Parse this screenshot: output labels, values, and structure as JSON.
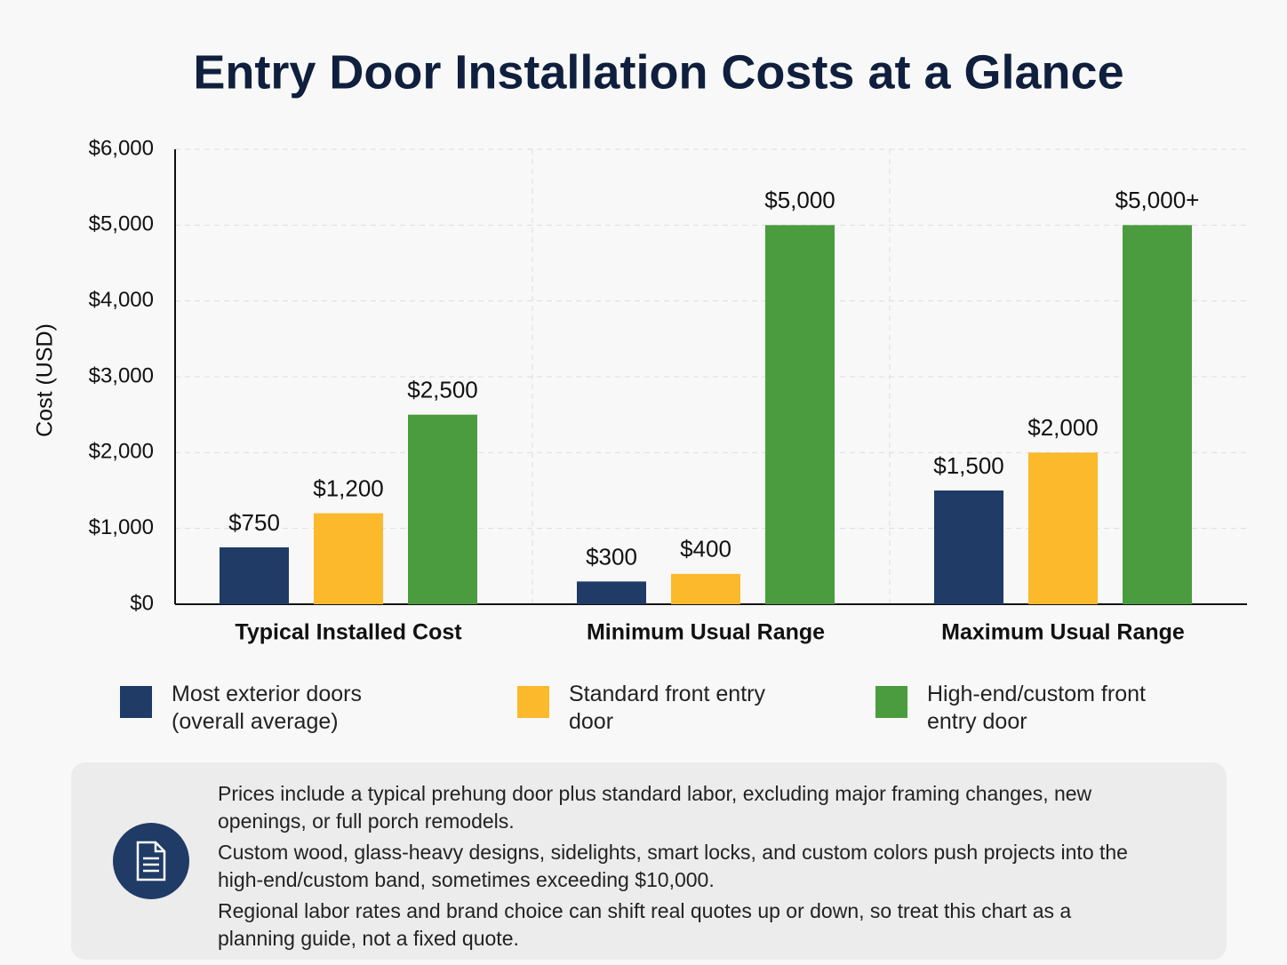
{
  "chart_data": {
    "type": "bar",
    "title": "Entry Door Installation Costs at a Glance",
    "y_label": "Cost (USD)",
    "categories": [
      "Typical Installed Cost",
      "Minimum Usual Range",
      "Maximum Usual Range"
    ],
    "series": [
      {
        "name": "Most exterior doors (overall average)",
        "color": "#1f3b66",
        "values": [
          750,
          300,
          1500
        ],
        "value_labels": [
          "$750",
          "$300",
          "$1,500"
        ]
      },
      {
        "name": "Standard front entry door",
        "color": "#fbb92b",
        "values": [
          1200,
          400,
          2000
        ],
        "value_labels": [
          "$1,200",
          "$400",
          "$2,000"
        ]
      },
      {
        "name": "High-end/custom front entry door",
        "color": "#4b9b3f",
        "values": [
          2500,
          5000,
          5000
        ],
        "value_labels": [
          "$2,500",
          "$5,000",
          "$5,000+"
        ]
      }
    ],
    "ylim": [
      0,
      6000
    ],
    "yticks": [
      {
        "value": 0,
        "label": "$0"
      },
      {
        "value": 1000,
        "label": "$1,000"
      },
      {
        "value": 2000,
        "label": "$2,000"
      },
      {
        "value": 3000,
        "label": "$3,000"
      },
      {
        "value": 4000,
        "label": "$4,000"
      },
      {
        "value": 5000,
        "label": "$5,000"
      },
      {
        "value": 6000,
        "label": "$6,000"
      }
    ],
    "grid": true,
    "notes": [
      "Prices include a typical prehung door plus standard labor, excluding major framing changes, new openings, or full porch remodels.",
      "Custom wood, glass-heavy designs, sidelights, smart locks, and custom colors push projects into the high-end/custom band, sometimes exceeding $10,000.",
      "Regional labor rates and brand choice can shift real quotes up or down, so treat this chart as a planning guide, not a fixed quote."
    ]
  }
}
